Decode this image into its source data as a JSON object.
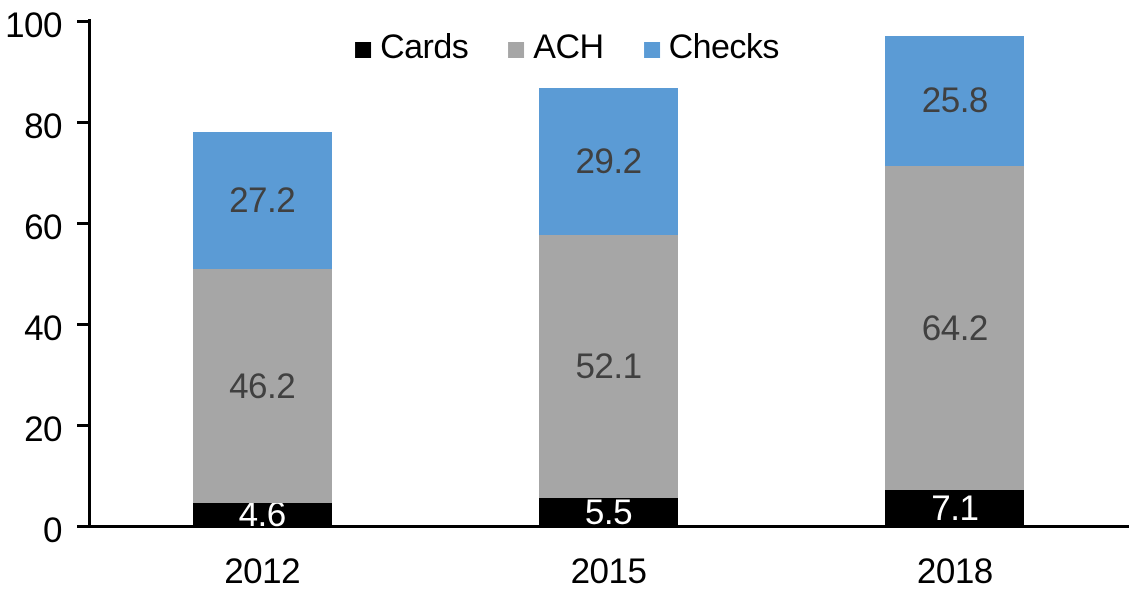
{
  "chart_data": {
    "type": "bar",
    "stacked": true,
    "title": "",
    "xlabel": "",
    "ylabel": "",
    "categories": [
      "2012",
      "2015",
      "2018"
    ],
    "series": [
      {
        "name": "Cards",
        "color": "#000000",
        "label_color": "#FFFFFF",
        "values": [
          4.6,
          5.5,
          7.1
        ]
      },
      {
        "name": "ACH",
        "color": "#A6A6A6",
        "label_color": "#404040",
        "values": [
          46.2,
          52.1,
          64.2
        ]
      },
      {
        "name": "Checks",
        "color": "#5B9BD5",
        "label_color": "#404040",
        "values": [
          27.2,
          29.2,
          25.8
        ]
      }
    ],
    "data_labels": {
      "show": true,
      "values_as_text": [
        [
          "4.6",
          "5.5",
          "7.1"
        ],
        [
          "46.2",
          "52.1",
          "64.2"
        ],
        [
          "27.2",
          "29.2",
          "25.8"
        ]
      ]
    },
    "ylim": [
      0,
      100
    ],
    "yticks": [
      "0",
      "20",
      "40",
      "60",
      "80",
      "100"
    ],
    "grid": false,
    "legend": {
      "position": "top-center",
      "labels": [
        "Cards",
        "ACH",
        "Checks"
      ]
    },
    "axis_color": "#000000"
  }
}
